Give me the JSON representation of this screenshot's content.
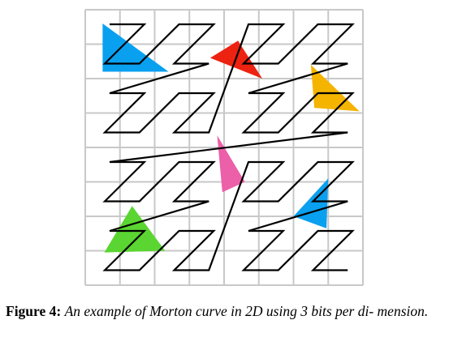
{
  "figure": {
    "grid_cells": 8,
    "bits": 3,
    "triangles": [
      {
        "name": "blue-triangle-top-left",
        "color": "#0aa0f0",
        "points": [
          [
            0.5,
            0.4
          ],
          [
            2.4,
            1.8
          ],
          [
            0.5,
            1.8
          ]
        ]
      },
      {
        "name": "red-triangle",
        "color": "#ee2211",
        "points": [
          [
            3.6,
            1.4
          ],
          [
            4.4,
            0.9
          ],
          [
            5.1,
            2.0
          ]
        ]
      },
      {
        "name": "orange-triangle",
        "color": "#f5b400",
        "points": [
          [
            6.5,
            1.6
          ],
          [
            7.9,
            2.95
          ],
          [
            6.6,
            2.85
          ]
        ]
      },
      {
        "name": "pink-triangle",
        "color": "#ec5fa9",
        "points": [
          [
            3.8,
            3.65
          ],
          [
            4.6,
            5.0
          ],
          [
            3.95,
            5.3
          ]
        ]
      },
      {
        "name": "blue-triangle-bottom-right",
        "color": "#0aa0f0",
        "points": [
          [
            7.0,
            4.9
          ],
          [
            6.95,
            6.35
          ],
          [
            6.0,
            6.0
          ]
        ]
      },
      {
        "name": "green-triangle",
        "color": "#5ad531",
        "points": [
          [
            1.35,
            5.7
          ],
          [
            2.3,
            7.0
          ],
          [
            0.55,
            7.05
          ]
        ]
      }
    ]
  },
  "caption": {
    "label": "Figure 4:",
    "text": "An example of Morton curve in 2D using 3 bits per di- mension."
  }
}
